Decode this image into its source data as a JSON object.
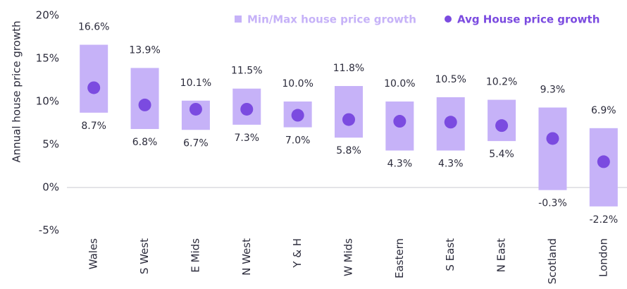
{
  "chart_data": {
    "type": "range_dot",
    "y_label": "Annual house price growth",
    "categories": [
      "Wales",
      "S West",
      "E Mids",
      "N West",
      "Y & H",
      "W Mids",
      "Eastern",
      "S East",
      "N East",
      "Scotland",
      "London"
    ],
    "series": [
      {
        "name": "Min/Max house price growth",
        "color": "#c6b2f8",
        "values": [
          16.6,
          13.9,
          10.1,
          11.5,
          10.0,
          11.8,
          10.0,
          10.5,
          10.2,
          9.3,
          6.9
        ],
        "value_labels": [
          "16.6%",
          "13.9%",
          "10.1%",
          "11.5%",
          "10.0%",
          "11.8%",
          "10.0%",
          "10.5%",
          "10.2%",
          "9.3%",
          "6.9%"
        ],
        "low": [
          8.7,
          6.8,
          6.7,
          7.3,
          7.0,
          5.8,
          4.3,
          4.3,
          5.4,
          -0.3,
          -2.2
        ],
        "low_labels": [
          "8.7%",
          "6.8%",
          "6.7%",
          "7.3%",
          "7.0%",
          "5.8%",
          "4.3%",
          "4.3%",
          "5.4%",
          "-0.3%",
          "-2.2%"
        ]
      },
      {
        "name": "Avg House price growth",
        "color": "#7b4be0",
        "values": [
          11.6,
          9.6,
          9.1,
          9.1,
          8.4,
          7.9,
          7.7,
          7.6,
          7.2,
          5.7,
          3.0
        ]
      }
    ],
    "ylim": [
      -5,
      20
    ],
    "yticks": [
      {
        "value": -5,
        "label": "-5%"
      },
      {
        "value": 0,
        "label": "0%"
      },
      {
        "value": 5,
        "label": "5%"
      },
      {
        "value": 10,
        "label": "10%"
      },
      {
        "value": 15,
        "label": "15%"
      },
      {
        "value": 20,
        "label": "20%"
      }
    ],
    "grid": false,
    "legend": "top-right"
  }
}
